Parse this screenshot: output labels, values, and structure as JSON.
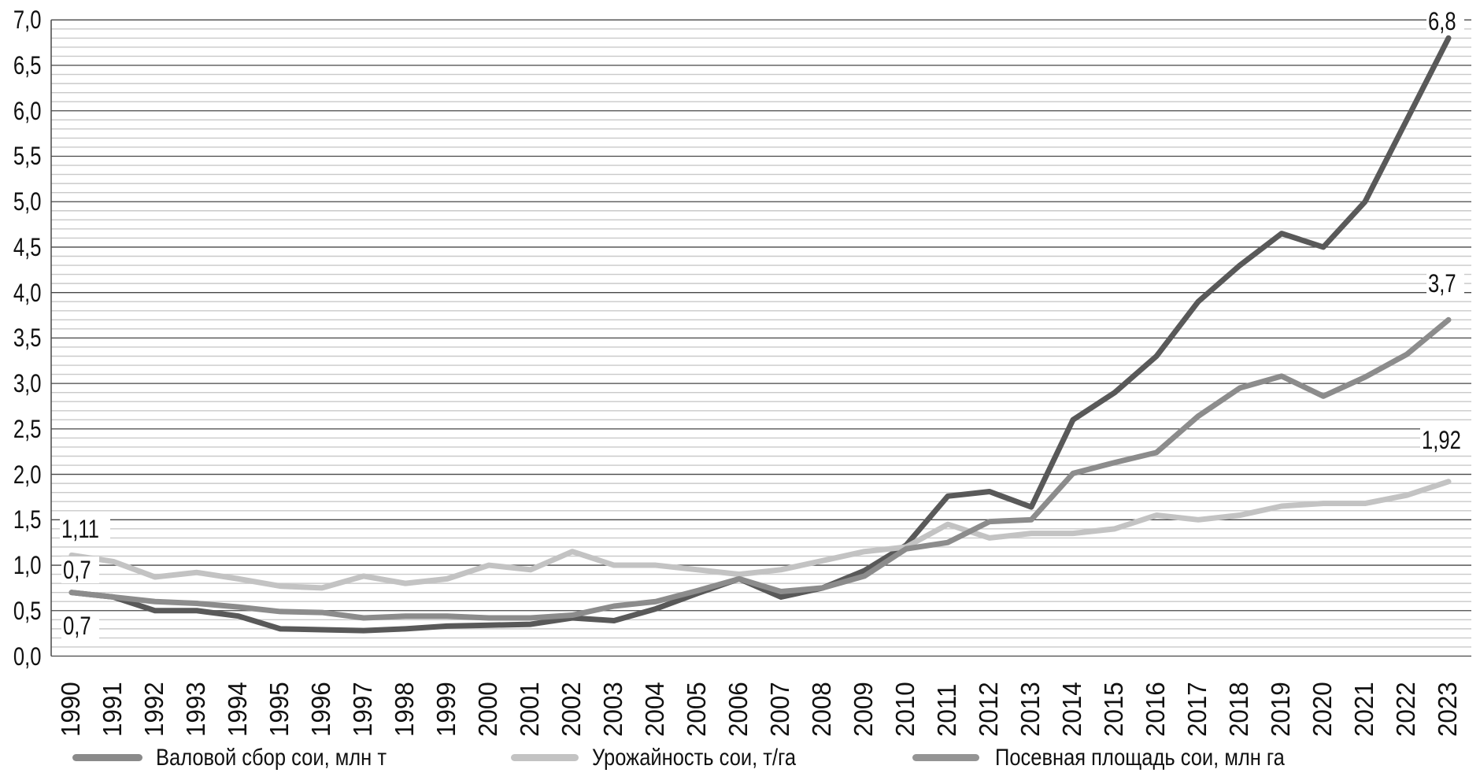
{
  "chart_data": {
    "type": "line",
    "title": "",
    "categories": [
      "1990",
      "1991",
      "1992",
      "1993",
      "1994",
      "1995",
      "1996",
      "1997",
      "1998",
      "1999",
      "2000",
      "2001",
      "2002",
      "2003",
      "2004",
      "2005",
      "2006",
      "2007",
      "2008",
      "2009",
      "2010",
      "2011",
      "2012",
      "2013",
      "2014",
      "2015",
      "2016",
      "2017",
      "2018",
      "2019",
      "2020",
      "2021",
      "2022",
      "2023"
    ],
    "series": [
      {
        "name": "Валовой сбор сои, млн т",
        "color": "#595959",
        "values": [
          0.7,
          0.65,
          0.5,
          0.5,
          0.44,
          0.3,
          0.29,
          0.28,
          0.3,
          0.33,
          0.34,
          0.35,
          0.42,
          0.39,
          0.52,
          0.69,
          0.85,
          0.65,
          0.75,
          0.94,
          1.22,
          1.76,
          1.81,
          1.64,
          2.6,
          2.9,
          3.3,
          3.9,
          4.3,
          4.65,
          4.5,
          5.0,
          5.9,
          6.8
        ]
      },
      {
        "name": "Урожайность сои, т/га",
        "color": "#c3c3c3",
        "values": [
          1.11,
          1.04,
          0.87,
          0.92,
          0.85,
          0.77,
          0.75,
          0.88,
          0.8,
          0.85,
          1.0,
          0.95,
          1.15,
          1.0,
          1.0,
          0.95,
          0.9,
          0.95,
          1.05,
          1.15,
          1.2,
          1.45,
          1.3,
          1.35,
          1.35,
          1.4,
          1.55,
          1.5,
          1.55,
          1.65,
          1.68,
          1.68,
          1.77,
          1.92
        ]
      },
      {
        "name": "Посевная площадь сои, млн га",
        "color": "#8c8c8c",
        "values": [
          0.7,
          0.65,
          0.6,
          0.58,
          0.54,
          0.49,
          0.48,
          0.42,
          0.44,
          0.44,
          0.42,
          0.42,
          0.45,
          0.55,
          0.6,
          0.72,
          0.85,
          0.71,
          0.75,
          0.88,
          1.18,
          1.25,
          1.48,
          1.5,
          2.01,
          2.13,
          2.24,
          2.64,
          2.95,
          3.08,
          2.86,
          3.07,
          3.32,
          3.7
        ]
      }
    ],
    "xlabel": "",
    "ylabel": "",
    "ylim": [
      0,
      7
    ],
    "y_major_step": 0.5,
    "y_minor_step": 0.1,
    "grid": true,
    "legend_position": "bottom",
    "y_tick_labels": [
      "7,0",
      "6,5",
      "6,0",
      "5,5",
      "5,0",
      "4,5",
      "4,0",
      "3,5",
      "3,0",
      "2,5",
      "2,0",
      "1,5",
      "1,0",
      "0,5",
      "0,0"
    ],
    "annotations": [
      {
        "series": "Урожайность сои, т/га",
        "year": "1990",
        "value": 1.11,
        "text": "1,11"
      },
      {
        "series": "Посевная площадь сои, млн га",
        "year": "1990",
        "value": 0.7,
        "text": "0,7"
      },
      {
        "series": "Валовой сбор сои, млн т",
        "year": "1990",
        "value": 0.7,
        "text": "0,7"
      },
      {
        "series": "Валовой сбор сои, млн т",
        "year": "2023",
        "value": 6.8,
        "text": "6,8"
      },
      {
        "series": "Посевная площадь сои, млн га",
        "year": "2023",
        "value": 3.7,
        "text": "3,7"
      },
      {
        "series": "Урожайность сои, т/га",
        "year": "2023",
        "value": 1.92,
        "text": "1,92"
      }
    ]
  },
  "legend": {
    "items": [
      {
        "label": "Валовой сбор сои, млн т",
        "swatch_color": "#8a8a8a"
      },
      {
        "label": "Урожайность сои, т/га",
        "swatch_color": "#c3c3c3"
      },
      {
        "label": "Посевная площадь сои, млн га",
        "swatch_color": "#949494"
      }
    ]
  },
  "colors": {
    "grid_minor": "#c9c9c9",
    "grid_major": "#474747",
    "axis": "#474747",
    "background": "#ffffff"
  }
}
